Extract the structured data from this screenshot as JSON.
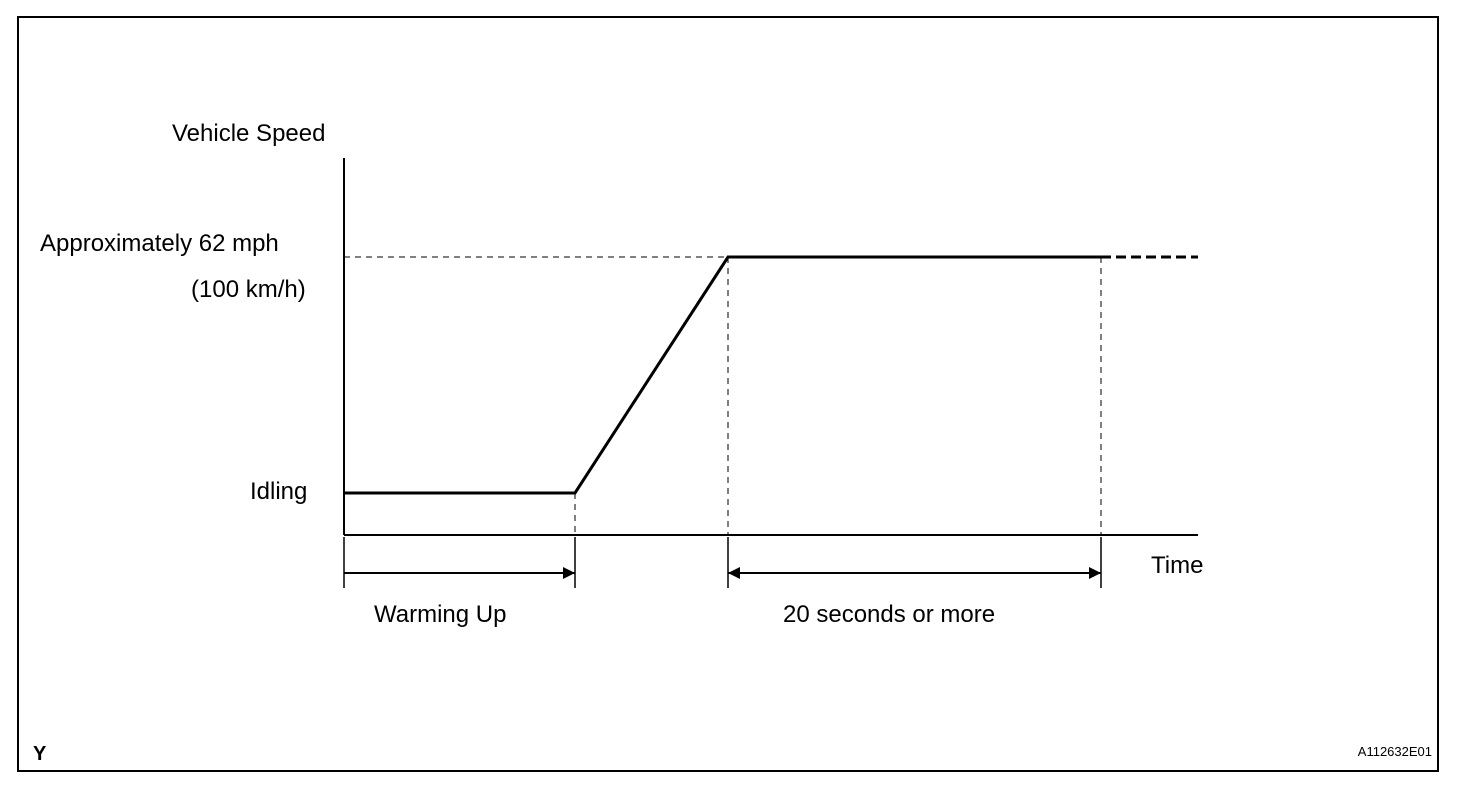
{
  "axes": {
    "y_label": "Vehicle Speed",
    "x_label": "Time"
  },
  "speed_levels": {
    "target_line1": "Approximately 62 mph",
    "target_line2": "(100 km/h)",
    "idle": "Idling"
  },
  "intervals": {
    "warm_up": "Warming Up",
    "hold": "20 seconds or more"
  },
  "corner": {
    "left": "Y",
    "right": "A112632E01"
  },
  "colors": {
    "line": "#000000",
    "background": "#ffffff"
  }
}
